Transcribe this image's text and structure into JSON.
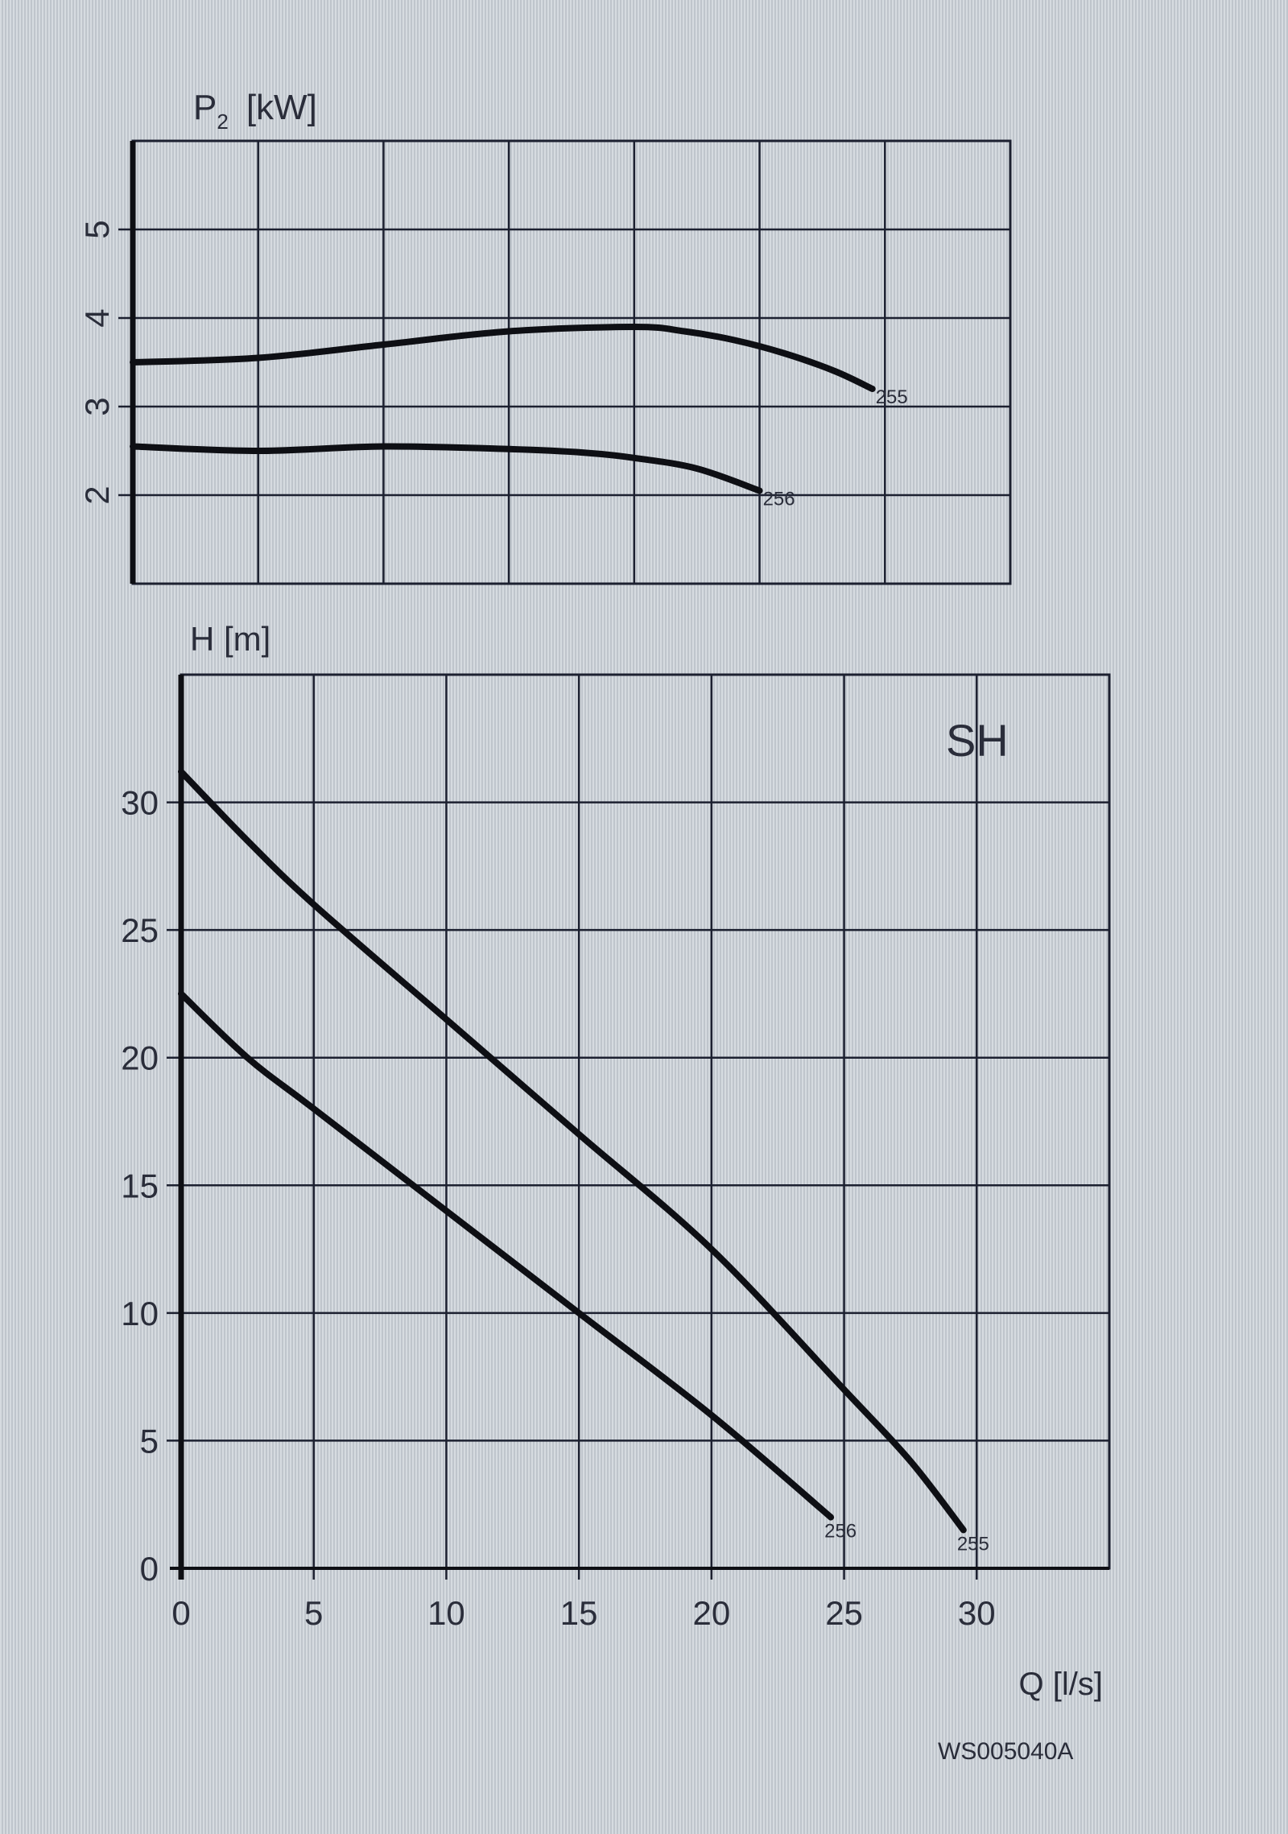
{
  "chart_data": [
    {
      "type": "line",
      "ylabel": "P2 [kW]",
      "ylabel_main": "P",
      "ylabel_sub": "2",
      "ylabel_unit": "[kW]",
      "xlim": [
        0,
        35
      ],
      "ylim": [
        1,
        6
      ],
      "yticks": [
        "2",
        "3",
        "4",
        "5"
      ],
      "grid": true,
      "series": [
        {
          "name": "255",
          "x": [
            0,
            5,
            10,
            15,
            20,
            22,
            24,
            26,
            28,
            29.5
          ],
          "y": [
            3.5,
            3.55,
            3.7,
            3.85,
            3.9,
            3.85,
            3.75,
            3.6,
            3.4,
            3.2
          ]
        },
        {
          "name": "256",
          "x": [
            0,
            5,
            10,
            15,
            18,
            20,
            22.5,
            25
          ],
          "y": [
            2.55,
            2.5,
            2.55,
            2.52,
            2.48,
            2.42,
            2.3,
            2.05
          ]
        }
      ]
    },
    {
      "type": "line",
      "ylabel": "H [m]",
      "xlabel": "Q [l/s]",
      "annotation": "SH",
      "xlim": [
        0,
        35
      ],
      "ylim": [
        0,
        35
      ],
      "xticks": [
        "0",
        "5",
        "10",
        "15",
        "20",
        "25",
        "30"
      ],
      "yticks": [
        "0",
        "5",
        "10",
        "15",
        "20",
        "25",
        "30"
      ],
      "grid": true,
      "series": [
        {
          "name": "255",
          "x": [
            0,
            2.5,
            5,
            10,
            15,
            20,
            25,
            27.5,
            29.5
          ],
          "y": [
            31.2,
            28.5,
            26,
            21.5,
            17,
            12.5,
            7,
            4.2,
            1.5
          ]
        },
        {
          "name": "256",
          "x": [
            0,
            2.5,
            5,
            10,
            15,
            20,
            24.5
          ],
          "y": [
            22.5,
            20,
            18,
            14,
            10,
            6,
            2
          ]
        }
      ]
    }
  ],
  "figure_code": "WS005040A",
  "colors": {
    "curve": "#0e0f14",
    "grid": "#1c2030",
    "background": "#cfd4da"
  }
}
